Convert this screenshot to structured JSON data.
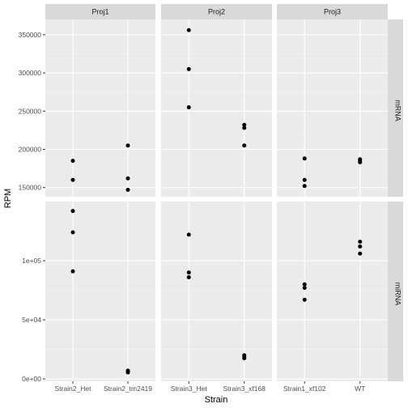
{
  "chart_data": {
    "type": "scatter",
    "title": "",
    "xlabel": "Strain",
    "ylabel": "RPM",
    "grid": true,
    "facet_cols": [
      "Proj1",
      "Proj2",
      "Proj3"
    ],
    "facet_rows": [
      "mRNA",
      "miRNA"
    ],
    "panels": [
      {
        "row": "mRNA",
        "col": "Proj1",
        "categories": [
          "Strain2_Het",
          "Strain2_tm2419"
        ],
        "ylim": [
          138000,
          370000
        ],
        "y_ticks": [
          150000,
          200000,
          250000,
          300000,
          350000
        ],
        "y_tick_labels": [
          "150000",
          "200000",
          "250000",
          "300000",
          "350000"
        ],
        "points": [
          {
            "x": "Strain2_Het",
            "y": 185000
          },
          {
            "x": "Strain2_Het",
            "y": 160000
          },
          {
            "x": "Strain2_tm2419",
            "y": 205000
          },
          {
            "x": "Strain2_tm2419",
            "y": 162000
          },
          {
            "x": "Strain2_tm2419",
            "y": 147000
          }
        ]
      },
      {
        "row": "mRNA",
        "col": "Proj2",
        "categories": [
          "Strain3_Het",
          "Strain3_xf168"
        ],
        "ylim": [
          138000,
          370000
        ],
        "points": [
          {
            "x": "Strain3_Het",
            "y": 356000
          },
          {
            "x": "Strain3_Het",
            "y": 305000
          },
          {
            "x": "Strain3_Het",
            "y": 255000
          },
          {
            "x": "Strain3_xf168",
            "y": 232000
          },
          {
            "x": "Strain3_xf168",
            "y": 228000
          },
          {
            "x": "Strain3_xf168",
            "y": 205000
          }
        ]
      },
      {
        "row": "mRNA",
        "col": "Proj3",
        "categories": [
          "Strain1_xf102",
          "WT"
        ],
        "ylim": [
          138000,
          370000
        ],
        "points": [
          {
            "x": "Strain1_xf102",
            "y": 188000
          },
          {
            "x": "Strain1_xf102",
            "y": 160000
          },
          {
            "x": "Strain1_xf102",
            "y": 152000
          },
          {
            "x": "WT",
            "y": 187000
          },
          {
            "x": "WT",
            "y": 185000
          },
          {
            "x": "WT",
            "y": 183000
          }
        ]
      },
      {
        "row": "miRNA",
        "col": "Proj1",
        "categories": [
          "Strain2_Het",
          "Strain2_tm2419"
        ],
        "ylim": [
          -2000,
          150000
        ],
        "y_ticks": [
          0,
          50000,
          100000
        ],
        "y_tick_labels": [
          "0e+00",
          "5e+04",
          "1e+05"
        ],
        "points": [
          {
            "x": "Strain2_Het",
            "y": 142000
          },
          {
            "x": "Strain2_Het",
            "y": 124000
          },
          {
            "x": "Strain2_Het",
            "y": 91000
          },
          {
            "x": "Strain2_tm2419",
            "y": 7000
          },
          {
            "x": "Strain2_tm2419",
            "y": 6000
          },
          {
            "x": "Strain2_tm2419",
            "y": 5500
          }
        ]
      },
      {
        "row": "miRNA",
        "col": "Proj2",
        "categories": [
          "Strain3_Het",
          "Strain3_xf168"
        ],
        "ylim": [
          -2000,
          150000
        ],
        "points": [
          {
            "x": "Strain3_Het",
            "y": 122000
          },
          {
            "x": "Strain3_Het",
            "y": 90000
          },
          {
            "x": "Strain3_Het",
            "y": 86000
          },
          {
            "x": "Strain3_xf168",
            "y": 20000
          },
          {
            "x": "Strain3_xf168",
            "y": 18500
          },
          {
            "x": "Strain3_xf168",
            "y": 17500
          }
        ]
      },
      {
        "row": "miRNA",
        "col": "Proj3",
        "categories": [
          "Strain1_xf102",
          "WT"
        ],
        "ylim": [
          -2000,
          150000
        ],
        "points": [
          {
            "x": "Strain1_xf102",
            "y": 80000
          },
          {
            "x": "Strain1_xf102",
            "y": 77000
          },
          {
            "x": "Strain1_xf102",
            "y": 67000
          },
          {
            "x": "WT",
            "y": 116000
          },
          {
            "x": "WT",
            "y": 112000
          },
          {
            "x": "WT",
            "y": 106000
          }
        ]
      }
    ],
    "colors": {
      "panel_bg": "#ebebeb",
      "strip_bg": "#d9d9d9",
      "grid_major": "#ffffff",
      "point": "#000000"
    }
  }
}
